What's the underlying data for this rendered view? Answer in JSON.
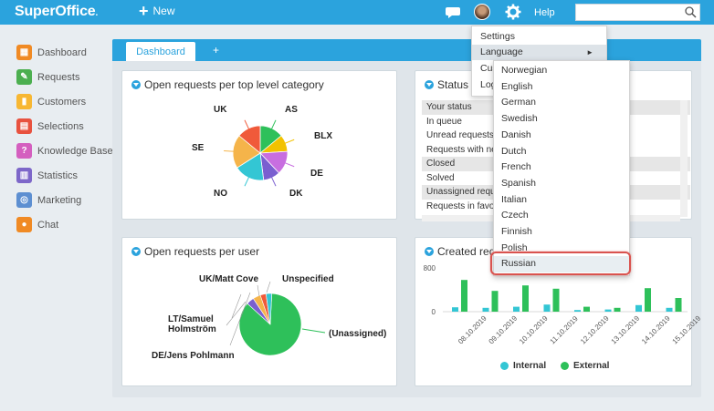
{
  "topbar": {
    "logo": "SuperOffice",
    "logo_suffix": ".",
    "new_label": "New",
    "help_label": "Help",
    "search_value": "",
    "accent_color": "#2ba3dd"
  },
  "nav": {
    "items": [
      {
        "label": "Dashboard",
        "icon": "dashboard-icon",
        "color": "#f08a24"
      },
      {
        "label": "Requests",
        "icon": "requests-icon",
        "color": "#4caf50"
      },
      {
        "label": "Customers",
        "icon": "customers-icon",
        "color": "#f7b733"
      },
      {
        "label": "Selections",
        "icon": "selections-icon",
        "color": "#e8523f"
      },
      {
        "label": "Knowledge Base",
        "icon": "knowledge-base-icon",
        "color": "#d45fbf"
      },
      {
        "label": "Statistics",
        "icon": "statistics-icon",
        "color": "#7d67c9"
      },
      {
        "label": "Marketing",
        "icon": "marketing-icon",
        "color": "#5d8fd1"
      },
      {
        "label": "Chat",
        "icon": "chat-icon",
        "color": "#f08a24"
      }
    ]
  },
  "tabs": {
    "active": "Dashboard",
    "add": "+"
  },
  "card1": {
    "title": "Open requests per top level category"
  },
  "card2": {
    "title": "Status",
    "rows": [
      "Your status",
      "In queue",
      "Unread requests",
      "Requests with ne",
      "Closed",
      "Solved",
      "Unassigned requ",
      "Requests in favou"
    ]
  },
  "card3": {
    "title": "Open requests per user"
  },
  "card4": {
    "title": "Created req"
  },
  "settings_menu": {
    "items": [
      "Settings",
      "Language",
      "Cus",
      "Log"
    ]
  },
  "language_menu": {
    "items": [
      "Norwegian",
      "English",
      "German",
      "Swedish",
      "Danish",
      "Dutch",
      "French",
      "Spanish",
      "Italian",
      "Czech",
      "Finnish",
      "Polish",
      "Russian"
    ],
    "selected": "Russian"
  },
  "chart_data": [
    {
      "type": "pie",
      "title": "Open requests per top level category",
      "categories": [
        "AS",
        "BLX",
        "DE",
        "DK",
        "NO",
        "SE",
        "UK"
      ],
      "values": [
        14,
        10,
        14,
        10,
        18,
        20,
        14
      ],
      "colors": [
        "#2ec05a",
        "#f2c200",
        "#c86ee0",
        "#7a5fd0",
        "#33c6d4",
        "#f5b44a",
        "#f05a3a"
      ]
    },
    {
      "type": "pie",
      "title": "Open requests per user",
      "categories": [
        "(Unassigned)",
        "DE/Jens Pohlmann",
        "LT/Samuel Holmström",
        "UK/Matt Cove",
        "Unspecified"
      ],
      "values": [
        86,
        4,
        4,
        3,
        3
      ],
      "colors": [
        "#2ec05a",
        "#7a5fd0",
        "#f5b44a",
        "#f05a3a",
        "#33c6d4"
      ]
    },
    {
      "type": "bar",
      "title": "Created req",
      "categories": [
        "08.10.2019",
        "09.10.2019",
        "10.10.2019",
        "11.10.2019",
        "12.10.2019",
        "13.10.2019",
        "14.10.2019",
        "15.10.2019"
      ],
      "ylim": [
        0,
        800
      ],
      "yticks": [
        800,
        0
      ],
      "series": [
        {
          "name": "Internal",
          "color": "#33c6d4",
          "values": [
            80,
            70,
            90,
            130,
            30,
            40,
            120,
            70
          ]
        },
        {
          "name": "External",
          "color": "#2ec05a",
          "values": [
            580,
            380,
            480,
            420,
            90,
            70,
            430,
            250
          ]
        }
      ]
    }
  ]
}
